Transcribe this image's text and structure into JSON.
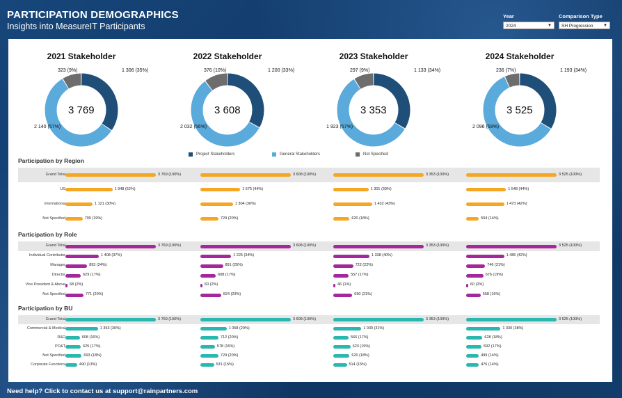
{
  "header": {
    "title": "PARTICIPATION DEMOGRAPHICS",
    "subtitle": "Insights into MeasureIT Participants"
  },
  "filters": {
    "year": {
      "label": "Year",
      "value": "2024"
    },
    "comparison": {
      "label": "Comparison Type",
      "value": "SH Progression"
    }
  },
  "colors": {
    "project": "#1f4e79",
    "general": "#5aaadb",
    "not_specified": "#6d6d6d",
    "region_bar": "#f5a623",
    "role_bar": "#a5279c",
    "bu_bar": "#2ab7b0"
  },
  "stakeholders": [
    {
      "title": "2021 Stakeholder",
      "total": "3 769",
      "project": 1306,
      "general": 2140,
      "not_specified": 323,
      "project_label": "1 306 (35%)",
      "general_label": "2 140 (57%)",
      "ns_label": "323 (9%)"
    },
    {
      "title": "2022 Stakeholder",
      "total": "3 608",
      "project": 1200,
      "general": 2032,
      "not_specified": 376,
      "project_label": "1 200 (33%)",
      "general_label": "2 032 (56%)",
      "ns_label": "376 (10%)"
    },
    {
      "title": "2023 Stakeholder",
      "total": "3 353",
      "project": 1133,
      "general": 1923,
      "not_specified": 297,
      "project_label": "1 133 (34%)",
      "general_label": "1 923 (57%)",
      "ns_label": "297 (9%)"
    },
    {
      "title": "2024 Stakeholder",
      "total": "3 525",
      "project": 1193,
      "general": 2096,
      "not_specified": 236,
      "project_label": "1 193 (34%)",
      "general_label": "2 096 (59%)",
      "ns_label": "236 (7%)"
    }
  ],
  "legend": [
    "Project Stakeholders",
    "General Stakeholders",
    "Not Specified"
  ],
  "sections": [
    {
      "title": "Participation by Region",
      "key": "region",
      "rows": [
        {
          "label": "Grand Total",
          "vals": [
            "3 769 (100%)",
            "3 608 (100%)",
            "3 353 (100%)",
            "3 525 (100%)"
          ],
          "pct": [
            100,
            100,
            100,
            100
          ]
        },
        {
          "label": "US",
          "vals": [
            "1 948 (52%)",
            "1 575 (44%)",
            "1 301 (39%)",
            "1 548 (44%)"
          ],
          "pct": [
            52,
            44,
            39,
            44
          ]
        },
        {
          "label": "International",
          "vals": [
            "1 121 (30%)",
            "1 304 (36%)",
            "1 432 (43%)",
            "1 473 (42%)"
          ],
          "pct": [
            30,
            36,
            43,
            42
          ]
        },
        {
          "label": "Not Specified",
          "vals": [
            "700 (19%)",
            "729 (20%)",
            "620 (18%)",
            "504 (14%)"
          ],
          "pct": [
            19,
            20,
            18,
            14
          ]
        }
      ]
    },
    {
      "title": "Participation by Role",
      "key": "role",
      "rows": [
        {
          "label": "Grand Total",
          "vals": [
            "3 769 (100%)",
            "3 608 (100%)",
            "3 353 (100%)",
            "3 525 (100%)"
          ],
          "pct": [
            100,
            100,
            100,
            100
          ]
        },
        {
          "label": "Individual Contributor",
          "vals": [
            "1 408 (37%)",
            "1 225 (34%)",
            "1 338 (40%)",
            "1 485 (42%)"
          ],
          "pct": [
            37,
            34,
            40,
            42
          ]
        },
        {
          "label": "Manager",
          "vals": [
            "893 (24%)",
            "891 (25%)",
            "722 (22%)",
            "746 (21%)"
          ],
          "pct": [
            24,
            25,
            22,
            21
          ]
        },
        {
          "label": "Director",
          "vals": [
            "629 (17%)",
            "608 (17%)",
            "557 (17%)",
            "676 (19%)"
          ],
          "pct": [
            17,
            17,
            17,
            19
          ]
        },
        {
          "label": "Vice President & Above",
          "vals": [
            "68 (2%)",
            "60 (2%)",
            "46 (1%)",
            "60 (2%)"
          ],
          "pct": [
            2,
            2,
            1,
            2
          ]
        },
        {
          "label": "Not Specified",
          "vals": [
            "771 (20%)",
            "824 (23%)",
            "690 (21%)",
            "558 (16%)"
          ],
          "pct": [
            20,
            23,
            21,
            16
          ]
        }
      ]
    },
    {
      "title": "Participation by BU",
      "key": "bu",
      "rows": [
        {
          "label": "Grand Total",
          "vals": [
            "3 769 (100%)",
            "3 608 (100%)",
            "3 353 (100%)",
            "3 525 (100%)"
          ],
          "pct": [
            100,
            100,
            100,
            100
          ]
        },
        {
          "label": "Commercial & Medical",
          "vals": [
            "1 353 (36%)",
            "1 058 (29%)",
            "1 030 (31%)",
            "1 330 (38%)"
          ],
          "pct": [
            36,
            29,
            31,
            38
          ]
        },
        {
          "label": "R&D",
          "vals": [
            "608 (16%)",
            "712 (20%)",
            "566 (17%)",
            "628 (18%)"
          ],
          "pct": [
            16,
            20,
            17,
            18
          ]
        },
        {
          "label": "PO&T",
          "vals": [
            "625 (17%)",
            "578 (16%)",
            "623 (19%)",
            "592 (17%)"
          ],
          "pct": [
            17,
            16,
            19,
            17
          ]
        },
        {
          "label": "Not Specified",
          "vals": [
            "693 (18%)",
            "729 (20%)",
            "620 (18%)",
            "499 (14%)"
          ],
          "pct": [
            18,
            20,
            18,
            14
          ]
        },
        {
          "label": "Corporate Functions",
          "vals": [
            "490 (13%)",
            "531 (15%)",
            "514 (15%)",
            "476 (14%)"
          ],
          "pct": [
            13,
            15,
            15,
            14
          ]
        }
      ]
    }
  ],
  "footer": "Need help? Click to contact us at support@rainpartners.com"
}
